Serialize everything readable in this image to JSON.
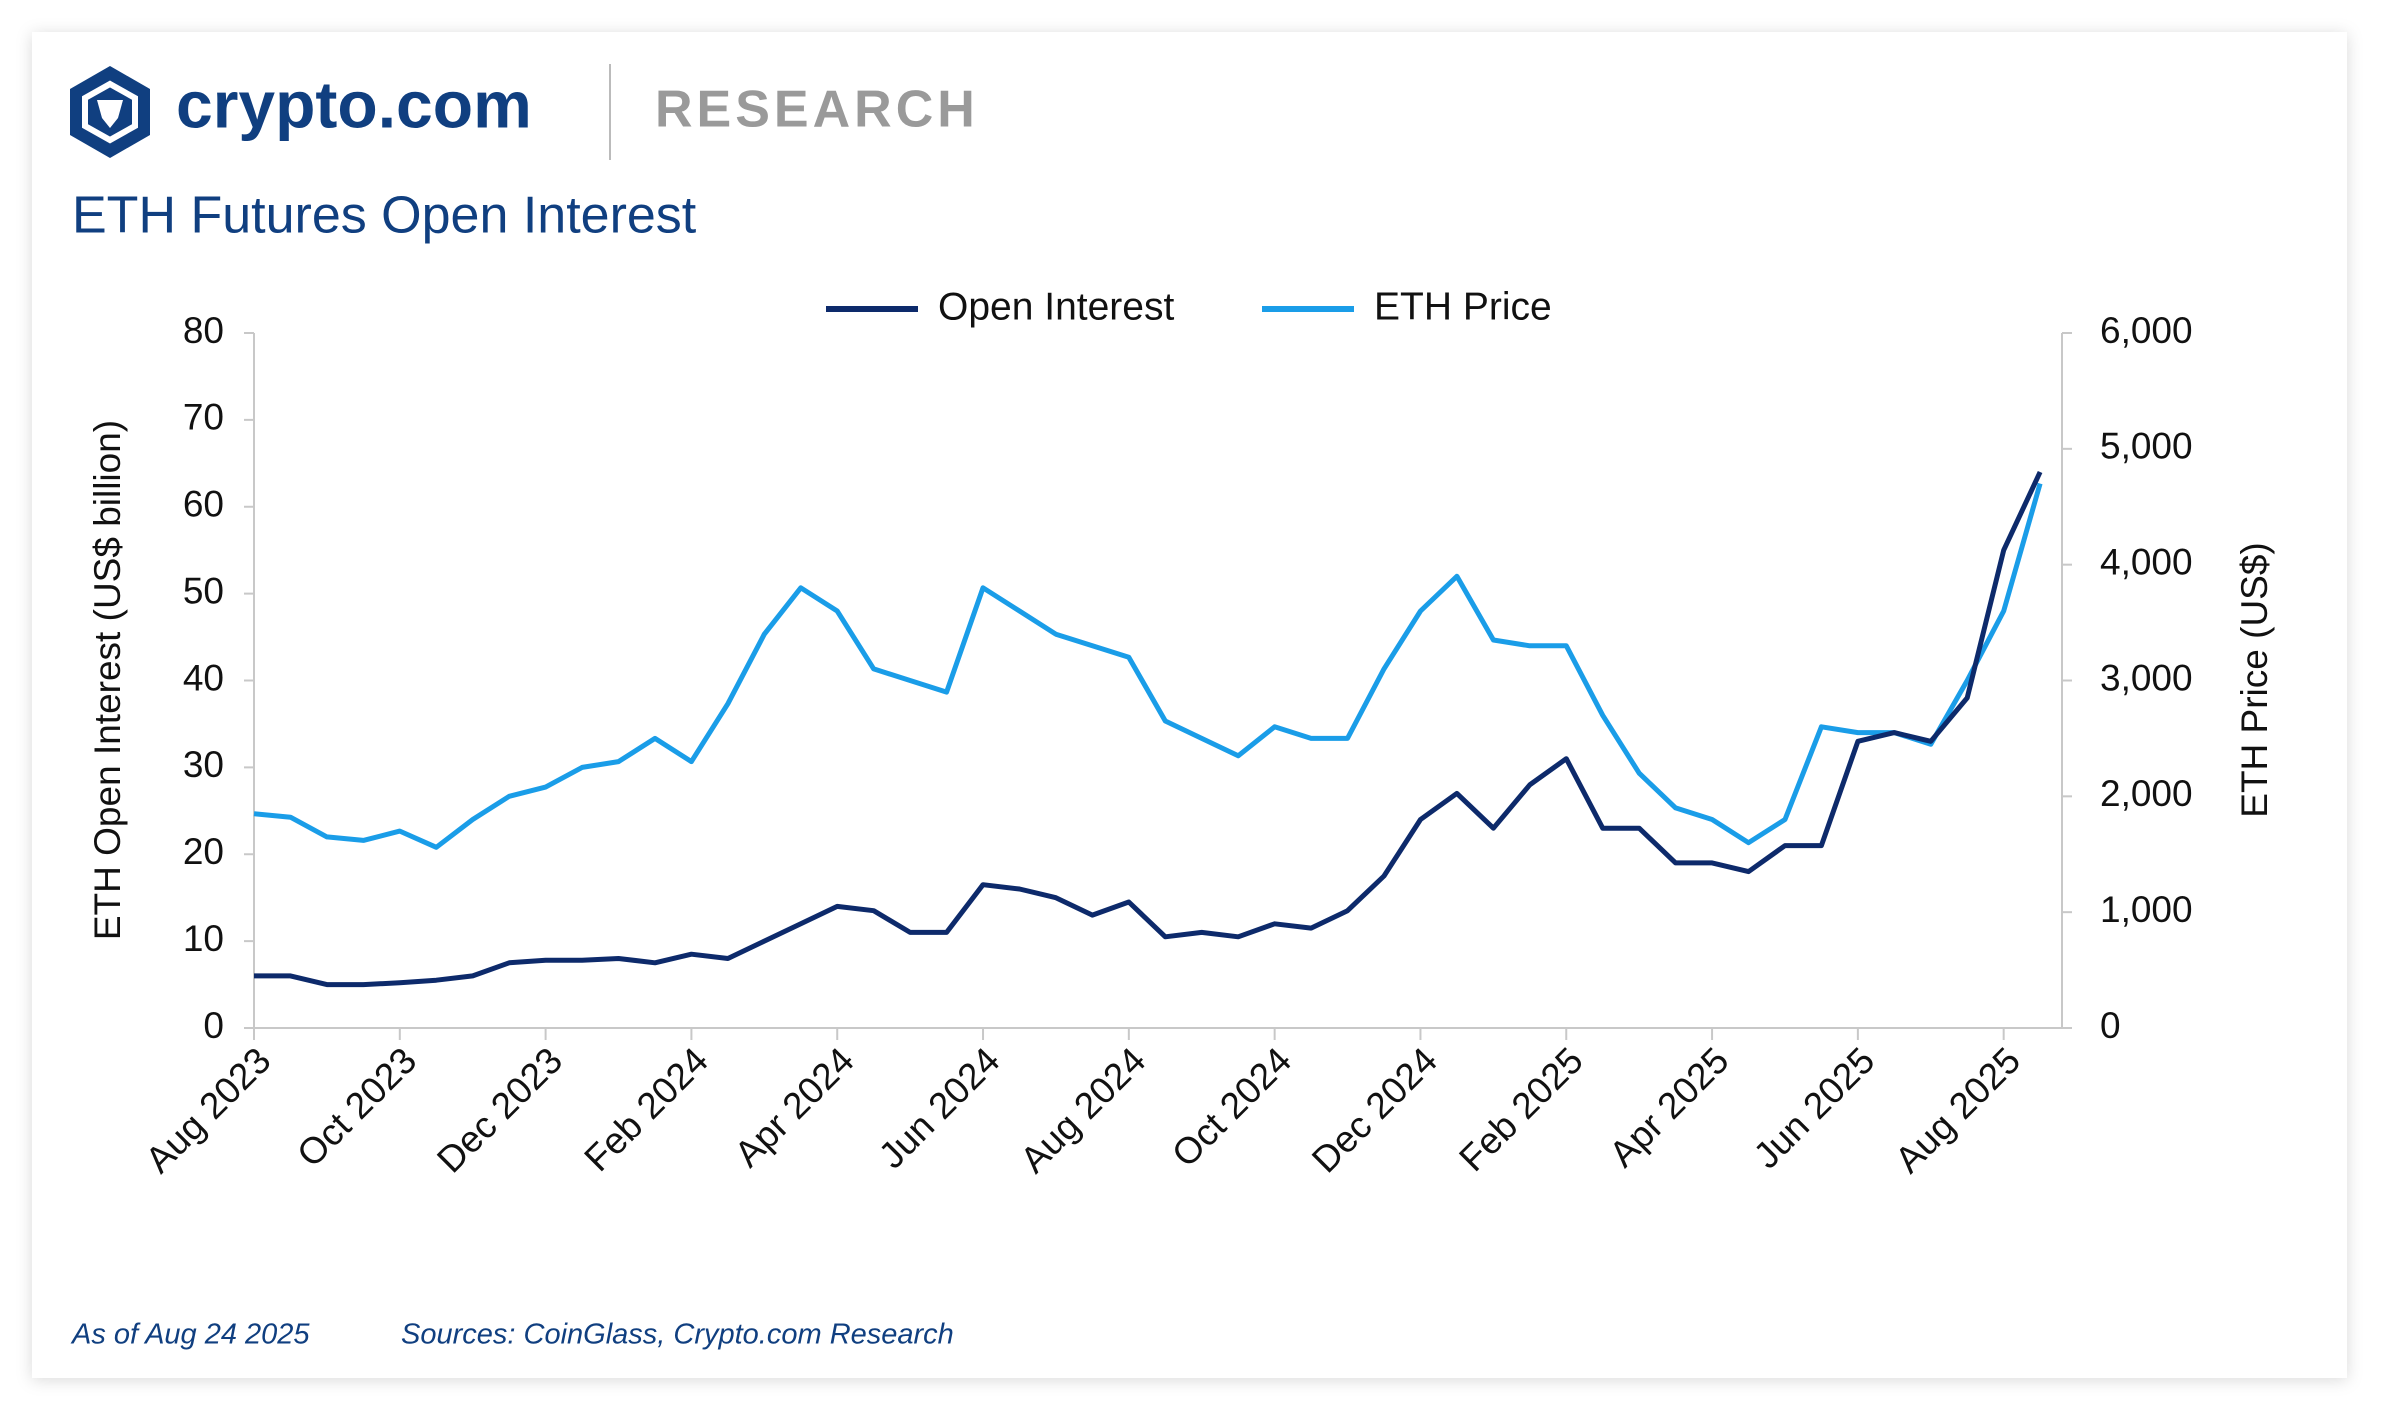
{
  "header": {
    "brand": "crypto.com",
    "section": "RESEARCH"
  },
  "chart_data": {
    "type": "line",
    "title": "ETH Futures Open Interest",
    "y_label": "ETH Open Interest (US$ billion)",
    "y2_label": "ETH Price (US$)",
    "note": "As of Aug 24 2025",
    "source": "Sources: CoinGlass, Crypto.com Research",
    "categories": [
      "Aug 2023",
      null,
      null,
      null,
      "Oct 2023",
      null,
      null,
      null,
      "Dec 2023",
      null,
      null,
      null,
      "Feb 2024",
      null,
      null,
      null,
      "Apr 2024",
      null,
      null,
      null,
      "Jun 2024",
      null,
      null,
      null,
      "Aug 2024",
      null,
      null,
      null,
      "Oct 2024",
      null,
      null,
      null,
      "Dec 2024",
      null,
      null,
      null,
      "Feb 2025",
      null,
      null,
      null,
      "Apr 2025",
      null,
      null,
      null,
      "Jun 2025",
      null,
      null,
      null,
      "Aug 2025",
      null
    ],
    "series": [
      {
        "name": "Open Interest",
        "color": "#0d2a6b",
        "axis": "y",
        "values": [
          6,
          6,
          5,
          5,
          5.2,
          5.5,
          6,
          7.5,
          7.8,
          7.8,
          8,
          7.5,
          8.5,
          8,
          10,
          12,
          14,
          13.5,
          11,
          11,
          16.5,
          16,
          15,
          13,
          14.5,
          10.5,
          11,
          10.5,
          12,
          11.5,
          13.5,
          17.5,
          24,
          27,
          23,
          28,
          31,
          23,
          23,
          19,
          19,
          18,
          21,
          21,
          33,
          34,
          33,
          38,
          55,
          64
        ]
      },
      {
        "name": "ETH Price",
        "color": "#1a9de8",
        "axis": "y2",
        "values": [
          1850,
          1820,
          1650,
          1620,
          1700,
          1560,
          1800,
          2000,
          2080,
          2250,
          2300,
          2500,
          2300,
          2800,
          3400,
          3800,
          3600,
          3100,
          3000,
          2900,
          3800,
          3600,
          3400,
          3300,
          3200,
          2650,
          2500,
          2350,
          2600,
          2500,
          2500,
          3100,
          3600,
          3900,
          3350,
          3300,
          3300,
          2700,
          2200,
          1900,
          1800,
          1600,
          1800,
          2600,
          2550,
          2550,
          2450,
          3000,
          3600,
          4700
        ]
      }
    ],
    "ylim": [
      0,
      80
    ],
    "yticks": [
      0,
      10,
      20,
      30,
      40,
      50,
      60,
      70,
      80
    ],
    "y2lim": [
      0,
      6000
    ],
    "y2ticks": [
      0,
      {
        "value": 1000,
        "label": "1,000"
      },
      {
        "value": 2000,
        "label": "2,000"
      },
      {
        "value": 3000,
        "label": "3,000"
      },
      {
        "value": 4000,
        "label": "4,000"
      },
      {
        "value": 5000,
        "label": "5,000"
      },
      {
        "value": 6000,
        "label": "6,000"
      }
    ],
    "grid": false,
    "legend": "top"
  }
}
